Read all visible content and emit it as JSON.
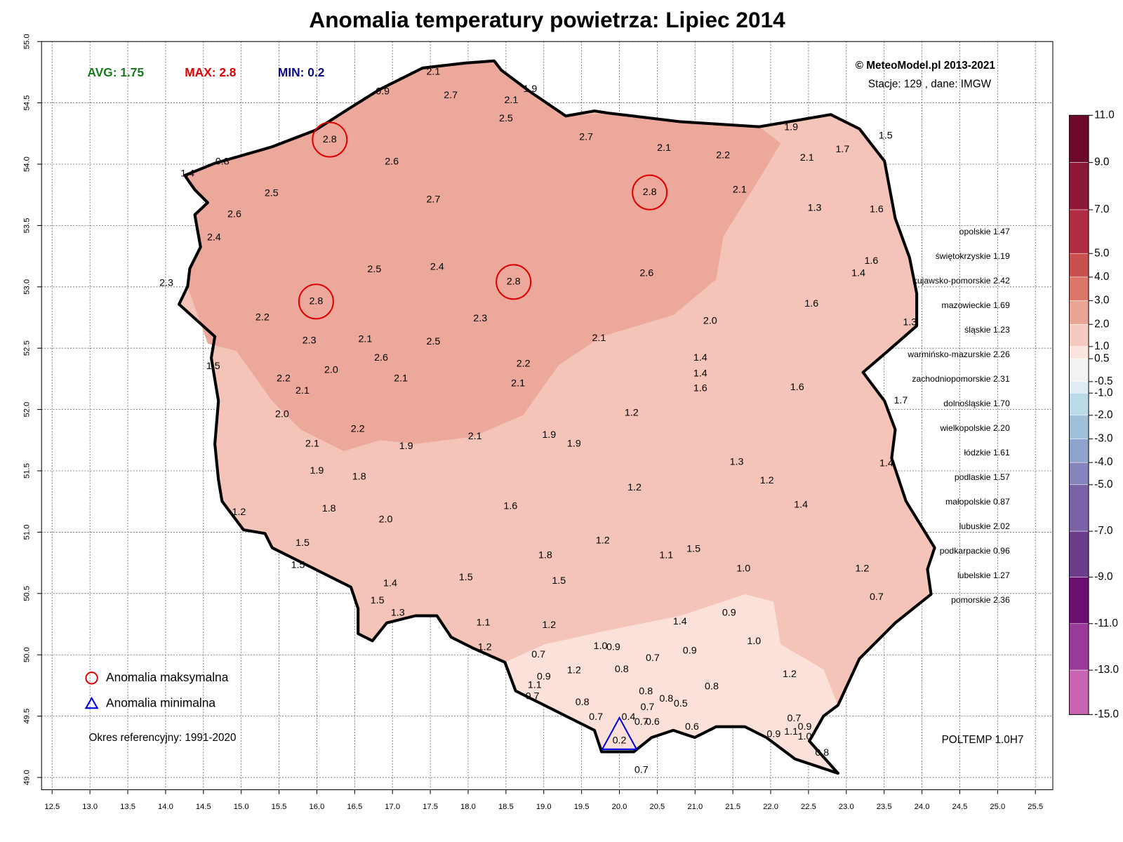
{
  "chart_data": {
    "type": "station-map",
    "title": "Anomalia temperatury powietrza:  Lipiec 2014",
    "stats": {
      "avg_label": "AVG:",
      "avg": 1.75,
      "max_label": "MAX:",
      "max": 2.8,
      "min_label": "MIN:",
      "min": 0.2
    },
    "credit": "© MeteoModel.pl 2013-2021",
    "source": "Stacje: 129 , dane: IMGW",
    "legend": {
      "max": "Anomalia maksymalna",
      "min": "Anomalia minimalna"
    },
    "reference": "Okres referencyjny: 1991-2020",
    "model": "POLTEMP 1.0H7",
    "grid": true,
    "xlim": [
      12.36,
      25.73
    ],
    "ylim": [
      48.9,
      55.0
    ],
    "xticks": [
      12.5,
      {
        "value": 13,
        "label": "13.0"
      },
      13.5,
      {
        "value": 14,
        "label": "14.0"
      },
      14.5,
      {
        "value": 15,
        "label": "15.0"
      },
      15.5,
      {
        "value": 16,
        "label": "16.0"
      },
      16.5,
      {
        "value": 17,
        "label": "17.0"
      },
      17.5,
      {
        "value": 18,
        "label": "18.0"
      },
      18.5,
      {
        "value": 19,
        "label": "19.0"
      },
      19.5,
      {
        "value": 20,
        "label": "20.0"
      },
      20.5,
      {
        "value": 21,
        "label": "21.0"
      },
      21.5,
      {
        "value": 22,
        "label": "22.0"
      },
      22.5,
      {
        "value": 23,
        "label": "23.0"
      },
      23.5,
      {
        "value": 24,
        "label": "24.0"
      },
      24.5,
      {
        "value": 25,
        "label": "25.0"
      },
      25.5
    ],
    "yticks": [
      {
        "value": 49,
        "label": "49.0"
      },
      49.5,
      {
        "value": 50,
        "label": "50.0"
      },
      50.5,
      {
        "value": 51,
        "label": "51.0"
      },
      51.5,
      {
        "value": 52,
        "label": "52.0"
      },
      52.5,
      {
        "value": 53,
        "label": "53.0"
      },
      53.5,
      {
        "value": 54,
        "label": "54.0"
      },
      54.5,
      {
        "value": 55,
        "label": "55.0"
      }
    ],
    "colorbar": {
      "ticks": [
        {
          "value": 11,
          "label": "11.0"
        },
        {
          "value": 9,
          "label": "9.0"
        },
        {
          "value": 7,
          "label": "7.0"
        },
        {
          "value": 5,
          "label": "5.0"
        },
        {
          "value": 4,
          "label": "4.0"
        },
        {
          "value": 3,
          "label": "3.0"
        },
        {
          "value": 2,
          "label": "2.0"
        },
        {
          "value": 1,
          "label": "1.0"
        },
        0.5,
        -0.5,
        {
          "value": -1,
          "label": "-1.0"
        },
        {
          "value": -2,
          "label": "-2.0"
        },
        {
          "value": -3,
          "label": "-3.0"
        },
        {
          "value": -4,
          "label": "-4.0"
        },
        {
          "value": -5,
          "label": "-5.0"
        },
        {
          "value": -7,
          "label": "-7.0"
        },
        {
          "value": -9,
          "label": "-9.0"
        },
        {
          "value": -11,
          "label": "-11.0"
        },
        {
          "value": -13,
          "label": "-13.0"
        },
        {
          "value": -15,
          "label": "-15.0"
        }
      ],
      "colors": [
        "#6d0a2c",
        "#8c1736",
        "#b02c42",
        "#c9504f",
        "#dc7768",
        "#eba594",
        "#f6cbbf",
        "#fbe5de",
        "#f2f2f2",
        "#e0eef3",
        "#bcdbe8",
        "#a0bfd9",
        "#8fa3cf",
        "#8684bd",
        "#7a62a6",
        "#6b3d8a",
        "#6a0f70",
        "#9a3a9a",
        "#c965b0"
      ]
    },
    "regions": [
      "opolskie 1.47",
      "świętokrzyskie 1.19",
      "kujawsko-pomorskie 2.42",
      "mazowieckie 1.69",
      "śląskie 1.23",
      "warmińsko-mazurskie 2.26",
      "zachodniopomorskie 2.31",
      "dolnośląskie 1.70",
      "wielkopolskie 2.20",
      "łódzkie 1.61",
      "podlaskie 1.57",
      "małopolskie 0.87",
      "lubuskie 2.02",
      "podkarpackie 0.96",
      "lubelskie 1.27",
      "pomorskie 2.36"
    ],
    "stations": [
      {
        "lon": 17.54,
        "lat": 54.75,
        "label": "2.1"
      },
      {
        "lon": 17.77,
        "lat": 54.56,
        "label": "2.7"
      },
      {
        "lon": 16.87,
        "lat": 54.59,
        "label": "0.9"
      },
      {
        "lon": 18.57,
        "lat": 54.52,
        "label": "2.1"
      },
      {
        "lon": 18.82,
        "lat": 54.61,
        "label": "1.9"
      },
      {
        "lon": 18.5,
        "lat": 54.37,
        "label": "2.5"
      },
      {
        "lon": 16.17,
        "lat": 54.2,
        "label": "2.8"
      },
      {
        "lon": 14.75,
        "lat": 54.02,
        "label": "0.8"
      },
      {
        "lon": 14.29,
        "lat": 53.92,
        "label": "1.4"
      },
      {
        "lon": 16.99,
        "lat": 54.02,
        "label": "2.6"
      },
      {
        "lon": 19.56,
        "lat": 54.22,
        "label": "2.7"
      },
      {
        "lon": 20.59,
        "lat": 54.13,
        "label": "2.1"
      },
      {
        "lon": 21.37,
        "lat": 54.07,
        "label": "2.2"
      },
      {
        "lon": 22.27,
        "lat": 54.3,
        "label": "1.9"
      },
      {
        "lon": 22.95,
        "lat": 54.12,
        "label": "1.7"
      },
      {
        "lon": 23.52,
        "lat": 54.23,
        "label": "1.5"
      },
      {
        "lon": 22.48,
        "lat": 54.05,
        "label": "2.1"
      },
      {
        "lon": 20.4,
        "lat": 53.77,
        "label": "2.8"
      },
      {
        "lon": 21.59,
        "lat": 53.79,
        "label": "2.1"
      },
      {
        "lon": 15.4,
        "lat": 53.76,
        "label": "2.5"
      },
      {
        "lon": 14.91,
        "lat": 53.59,
        "label": "2.6"
      },
      {
        "lon": 14.64,
        "lat": 53.4,
        "label": "2.4"
      },
      {
        "lon": 17.54,
        "lat": 53.71,
        "label": "2.7"
      },
      {
        "lon": 22.58,
        "lat": 53.64,
        "label": "1.3"
      },
      {
        "lon": 23.4,
        "lat": 53.63,
        "label": "1.6"
      },
      {
        "lon": 16.76,
        "lat": 53.14,
        "label": "2.5"
      },
      {
        "lon": 17.59,
        "lat": 53.16,
        "label": "2.4"
      },
      {
        "lon": 18.6,
        "lat": 53.04,
        "label": "2.8"
      },
      {
        "lon": 20.36,
        "lat": 53.11,
        "label": "2.6"
      },
      {
        "lon": 23.33,
        "lat": 53.21,
        "label": "1.6"
      },
      {
        "lon": 23.16,
        "lat": 53.11,
        "label": "1.4"
      },
      {
        "lon": 14.01,
        "lat": 53.03,
        "label": "2.3"
      },
      {
        "lon": 15.99,
        "lat": 52.88,
        "label": "2.8"
      },
      {
        "lon": 15.28,
        "lat": 52.75,
        "label": "2.2"
      },
      {
        "lon": 18.16,
        "lat": 52.74,
        "label": "2.3"
      },
      {
        "lon": 22.54,
        "lat": 52.86,
        "label": "1.6"
      },
      {
        "lon": 21.2,
        "lat": 52.72,
        "label": "2.0"
      },
      {
        "lon": 23.84,
        "lat": 52.71,
        "label": "1.3"
      },
      {
        "lon": 15.9,
        "lat": 52.56,
        "label": "2.3"
      },
      {
        "lon": 16.64,
        "lat": 52.57,
        "label": "2.1"
      },
      {
        "lon": 17.54,
        "lat": 52.55,
        "label": "2.5"
      },
      {
        "lon": 19.73,
        "lat": 52.58,
        "label": "2.1"
      },
      {
        "lon": 14.63,
        "lat": 52.35,
        "label": "1.5"
      },
      {
        "lon": 16.85,
        "lat": 52.42,
        "label": "2.6"
      },
      {
        "lon": 21.07,
        "lat": 52.42,
        "label": "1.4"
      },
      {
        "lon": 16.19,
        "lat": 52.32,
        "label": "2.0"
      },
      {
        "lon": 18.73,
        "lat": 52.37,
        "label": "2.2"
      },
      {
        "lon": 15.56,
        "lat": 52.25,
        "label": "2.2"
      },
      {
        "lon": 21.07,
        "lat": 52.29,
        "label": "1.4"
      },
      {
        "lon": 17.11,
        "lat": 52.25,
        "label": "2.1"
      },
      {
        "lon": 15.81,
        "lat": 52.15,
        "label": "2.1"
      },
      {
        "lon": 18.66,
        "lat": 52.21,
        "label": "2.1"
      },
      {
        "lon": 21.07,
        "lat": 52.17,
        "label": "1.6"
      },
      {
        "lon": 22.35,
        "lat": 52.18,
        "label": "1.6"
      },
      {
        "lon": 23.72,
        "lat": 52.07,
        "label": "1.7"
      },
      {
        "lon": 15.54,
        "lat": 51.96,
        "label": "2.0"
      },
      {
        "lon": 20.16,
        "lat": 51.97,
        "label": "1.2"
      },
      {
        "lon": 16.54,
        "lat": 51.84,
        "label": "2.2"
      },
      {
        "lon": 18.09,
        "lat": 51.78,
        "label": "2.1"
      },
      {
        "lon": 19.07,
        "lat": 51.79,
        "label": "1.9"
      },
      {
        "lon": 19.4,
        "lat": 51.72,
        "label": "1.9"
      },
      {
        "lon": 15.94,
        "lat": 51.72,
        "label": "2.1"
      },
      {
        "lon": 17.18,
        "lat": 51.7,
        "label": "1.9"
      },
      {
        "lon": 16.0,
        "lat": 51.5,
        "label": "1.9"
      },
      {
        "lon": 16.56,
        "lat": 51.45,
        "label": "1.8"
      },
      {
        "lon": 21.55,
        "lat": 51.57,
        "label": "1.3"
      },
      {
        "lon": 23.53,
        "lat": 51.56,
        "label": "1.4"
      },
      {
        "lon": 21.95,
        "lat": 51.42,
        "label": "1.2"
      },
      {
        "lon": 20.2,
        "lat": 51.36,
        "label": "1.2"
      },
      {
        "lon": 16.16,
        "lat": 51.19,
        "label": "1.8"
      },
      {
        "lon": 18.56,
        "lat": 51.21,
        "label": "1.6"
      },
      {
        "lon": 22.4,
        "lat": 51.22,
        "label": "1.4"
      },
      {
        "lon": 14.97,
        "lat": 51.16,
        "label": "1.2"
      },
      {
        "lon": 16.91,
        "lat": 51.1,
        "label": "2.0"
      },
      {
        "lon": 19.78,
        "lat": 50.93,
        "label": "1.2"
      },
      {
        "lon": 15.81,
        "lat": 50.91,
        "label": "1.5"
      },
      {
        "lon": 19.02,
        "lat": 50.81,
        "label": "1.8"
      },
      {
        "lon": 20.62,
        "lat": 50.81,
        "label": "1.1"
      },
      {
        "lon": 20.98,
        "lat": 50.86,
        "label": "1.5"
      },
      {
        "lon": 15.75,
        "lat": 50.73,
        "label": "1.5"
      },
      {
        "lon": 21.64,
        "lat": 50.7,
        "label": "1.0"
      },
      {
        "lon": 23.21,
        "lat": 50.7,
        "label": "1.2"
      },
      {
        "lon": 17.97,
        "lat": 50.63,
        "label": "1.5"
      },
      {
        "lon": 19.2,
        "lat": 50.6,
        "label": "1.5"
      },
      {
        "lon": 16.97,
        "lat": 50.58,
        "label": "1.4"
      },
      {
        "lon": 16.8,
        "lat": 50.44,
        "label": "1.5"
      },
      {
        "lon": 23.4,
        "lat": 50.47,
        "label": "0.7"
      },
      {
        "lon": 17.07,
        "lat": 50.34,
        "label": "1.3"
      },
      {
        "lon": 21.45,
        "lat": 50.34,
        "label": "0.9"
      },
      {
        "lon": 20.8,
        "lat": 50.27,
        "label": "1.4"
      },
      {
        "lon": 18.2,
        "lat": 50.26,
        "label": "1.1"
      },
      {
        "lon": 19.07,
        "lat": 50.24,
        "label": "1.2"
      },
      {
        "lon": 21.78,
        "lat": 50.11,
        "label": "1.0"
      },
      {
        "lon": 18.22,
        "lat": 50.06,
        "label": "1.2"
      },
      {
        "lon": 19.75,
        "lat": 50.07,
        "label": "1.0"
      },
      {
        "lon": 19.92,
        "lat": 50.06,
        "label": "0.9"
      },
      {
        "lon": 20.93,
        "lat": 50.03,
        "label": "0.9"
      },
      {
        "lon": 18.93,
        "lat": 50.0,
        "label": "0.7"
      },
      {
        "lon": 20.44,
        "lat": 49.97,
        "label": "0.7"
      },
      {
        "lon": 19.4,
        "lat": 49.87,
        "label": "1.2"
      },
      {
        "lon": 20.03,
        "lat": 49.88,
        "label": "0.8"
      },
      {
        "lon": 22.25,
        "lat": 49.84,
        "label": "1.2"
      },
      {
        "lon": 19.0,
        "lat": 49.82,
        "label": "0.9"
      },
      {
        "lon": 18.88,
        "lat": 49.75,
        "label": "1.1"
      },
      {
        "lon": 21.22,
        "lat": 49.74,
        "label": "0.8"
      },
      {
        "lon": 20.35,
        "lat": 49.7,
        "label": "0.8"
      },
      {
        "lon": 18.85,
        "lat": 49.66,
        "label": "0.7"
      },
      {
        "lon": 20.62,
        "lat": 49.64,
        "label": "0.8"
      },
      {
        "lon": 19.51,
        "lat": 49.61,
        "label": "0.8"
      },
      {
        "lon": 20.37,
        "lat": 49.57,
        "label": "0.7"
      },
      {
        "lon": 20.81,
        "lat": 49.6,
        "label": "0.5"
      },
      {
        "lon": 19.69,
        "lat": 49.49,
        "label": "0.7"
      },
      {
        "lon": 20.12,
        "lat": 49.49,
        "label": "0.4"
      },
      {
        "lon": 22.31,
        "lat": 49.48,
        "label": "0.7"
      },
      {
        "lon": 22.45,
        "lat": 49.41,
        "label": "0.9"
      },
      {
        "lon": 20.29,
        "lat": 49.45,
        "label": "0.7"
      },
      {
        "lon": 20.44,
        "lat": 49.45,
        "label": "0.6"
      },
      {
        "lon": 20.96,
        "lat": 49.41,
        "label": "0.6"
      },
      {
        "lon": 22.27,
        "lat": 49.37,
        "label": "1.1"
      },
      {
        "lon": 22.04,
        "lat": 49.35,
        "label": "0.9"
      },
      {
        "lon": 22.45,
        "lat": 49.33,
        "label": "1.0"
      },
      {
        "lon": 22.68,
        "lat": 49.2,
        "label": "0.8"
      },
      {
        "lon": 20.0,
        "lat": 49.3,
        "label": "0.2"
      },
      {
        "lon": 20.29,
        "lat": 49.06,
        "label": "0.7"
      }
    ]
  }
}
